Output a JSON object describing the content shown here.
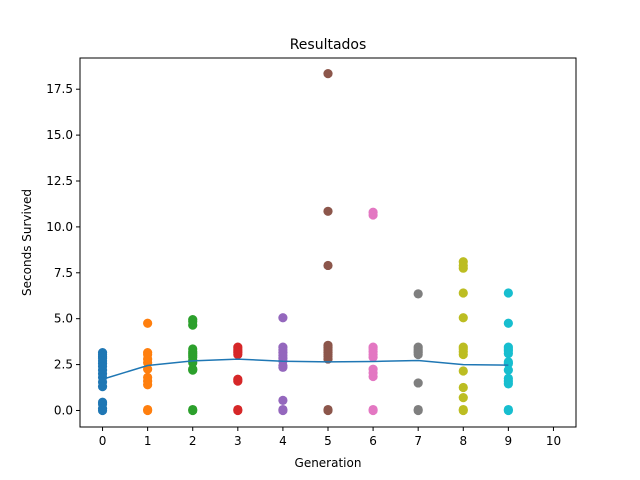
{
  "chart_data": {
    "type": "scatter",
    "title": "Resultados",
    "xlabel": "Generation",
    "ylabel": "Seconds Survived",
    "xlim": [
      -0.5,
      10.5
    ],
    "ylim": [
      -0.9,
      19.2
    ],
    "xticks": [
      0,
      1,
      2,
      3,
      4,
      5,
      6,
      7,
      8,
      9,
      10
    ],
    "yticks": [
      "0.0",
      "2.5",
      "5.0",
      "7.5",
      "10.0",
      "12.5",
      "15.0",
      "17.5"
    ],
    "grid": false,
    "legend": "none",
    "series": [
      {
        "generation": 0,
        "color": "#1f77b4",
        "values": [
          3.15,
          3.05,
          2.95,
          2.85,
          2.7,
          2.55,
          2.4,
          2.2,
          2.0,
          1.8,
          1.55,
          1.3,
          0.45,
          0.35,
          0.1,
          0.0
        ]
      },
      {
        "generation": 1,
        "color": "#ff7f0e",
        "values": [
          4.75,
          3.15,
          3.05,
          2.8,
          2.6,
          2.25,
          1.8,
          1.6,
          1.4,
          0.05,
          0.0
        ]
      },
      {
        "generation": 2,
        "color": "#2ca02c",
        "values": [
          4.95,
          4.85,
          4.65,
          3.35,
          3.2,
          3.1,
          3.0,
          2.9,
          2.75,
          2.6,
          2.25,
          2.2,
          0.05,
          0.0
        ]
      },
      {
        "generation": 3,
        "color": "#d62728",
        "values": [
          3.45,
          3.35,
          3.25,
          3.15,
          3.05,
          1.7,
          1.6,
          0.05,
          0.0
        ]
      },
      {
        "generation": 4,
        "color": "#9467bd",
        "values": [
          5.05,
          3.45,
          3.3,
          3.15,
          3.0,
          2.85,
          2.7,
          2.45,
          2.35,
          0.55,
          0.05,
          0.0
        ]
      },
      {
        "generation": 5,
        "color": "#8c564b",
        "values": [
          18.35,
          10.85,
          7.9,
          3.55,
          3.45,
          3.35,
          3.25,
          3.15,
          3.05,
          2.95,
          2.8,
          0.05,
          0.0
        ]
      },
      {
        "generation": 6,
        "color": "#e377c2",
        "values": [
          10.8,
          10.65,
          3.45,
          3.35,
          3.2,
          3.05,
          2.9,
          2.25,
          2.05,
          1.85,
          0.05,
          0.0
        ]
      },
      {
        "generation": 7,
        "color": "#7f7f7f",
        "values": [
          6.35,
          3.45,
          3.35,
          3.25,
          3.15,
          3.05,
          1.5,
          0.05,
          0.0
        ]
      },
      {
        "generation": 8,
        "color": "#bcbd22",
        "values": [
          8.1,
          7.9,
          7.75,
          6.4,
          5.05,
          3.45,
          3.35,
          3.2,
          3.05,
          2.15,
          1.25,
          0.7,
          0.05,
          0.0
        ]
      },
      {
        "generation": 9,
        "color": "#17becf",
        "values": [
          6.4,
          4.75,
          3.45,
          3.35,
          3.25,
          3.1,
          2.65,
          2.55,
          2.2,
          1.75,
          1.6,
          1.45,
          0.05,
          0.0
        ]
      }
    ],
    "mean_line": {
      "color": "#1f77b4",
      "x": [
        0,
        1,
        2,
        3,
        4,
        5,
        6,
        7,
        8,
        9
      ],
      "y": [
        1.7,
        2.45,
        2.7,
        2.8,
        2.68,
        2.65,
        2.67,
        2.72,
        2.5,
        2.47
      ]
    }
  }
}
